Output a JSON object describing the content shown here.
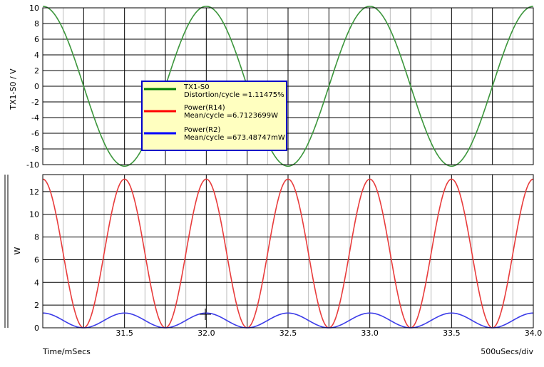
{
  "chart_data": [
    {
      "type": "line",
      "panel": "top",
      "ylabel": "TX1-S0 / V",
      "ylim": [
        -10,
        10
      ],
      "yticks": [
        10,
        8,
        6,
        4,
        2,
        0,
        -2,
        -4,
        -6,
        -8,
        -10
      ],
      "xlim": [
        31.0,
        34.0
      ],
      "series": [
        {
          "name": "TX1-S0",
          "color": "#3c963c",
          "amplitude": 10.2,
          "period_ms": 1.0,
          "phase_zero_ms": 31.0,
          "unit": "V"
        }
      ],
      "grid": true
    },
    {
      "type": "line",
      "panel": "bottom",
      "ylabel": "W",
      "ylim": [
        0,
        13.5
      ],
      "yticks": [
        12,
        10,
        8,
        6,
        4,
        2,
        0
      ],
      "xlim": [
        31.0,
        34.0
      ],
      "xticks": [
        "31.5",
        "32.0",
        "32.5",
        "33.0",
        "33.5",
        "34.0"
      ],
      "xtick_values": [
        31.5,
        32.0,
        32.5,
        33.0,
        33.5,
        34.0
      ],
      "series": [
        {
          "name": "Power(R14)",
          "color": "#e83c3c",
          "peak": 13.1,
          "period_ms": 0.5,
          "unit": "W"
        },
        {
          "name": "Power(R2)",
          "color": "#3c3ce8",
          "peak": 1.3,
          "period_ms": 0.5,
          "unit": "W"
        }
      ],
      "grid": true
    }
  ],
  "legend": {
    "entries": [
      {
        "color": "#008000",
        "line1": "TX1-S0",
        "line2": "Distortion/cycle =1.11475%"
      },
      {
        "color": "#ff0000",
        "line1": "Power(R14)",
        "line2": "Mean/cycle =6.7123699W"
      },
      {
        "color": "#0000ff",
        "line1": "Power(R2)",
        "line2": "Mean/cycle =673.48747mW"
      }
    ]
  },
  "footer": {
    "xlabel": "Time/mSecs",
    "scale": "500uSecs/div"
  }
}
